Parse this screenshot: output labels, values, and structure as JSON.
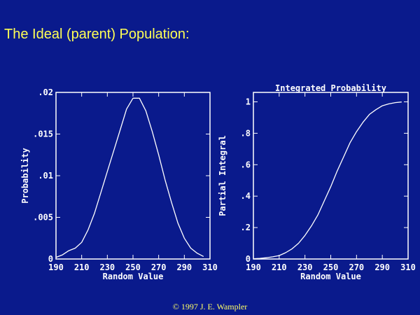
{
  "page": {
    "title": "The Ideal (parent) Population:",
    "copyright": "© 1997 J. E. Wampler"
  },
  "colors": {
    "background": "#0a1a8c",
    "title_text": "#ffff55",
    "axes": "#ffffff",
    "curve": "#ffffff"
  },
  "chart_data": [
    {
      "type": "line",
      "title": "",
      "xlabel": "Random Value",
      "ylabel": "Probability",
      "xlim": [
        190,
        310
      ],
      "ylim": [
        0,
        0.02
      ],
      "x_ticks": [
        190,
        210,
        230,
        250,
        270,
        290,
        310
      ],
      "x_tick_labels": [
        "190",
        "210",
        "230",
        "250",
        "270",
        "290",
        "310"
      ],
      "y_ticks": [
        0,
        0.005,
        0.01,
        0.015,
        0.02
      ],
      "y_tick_labels": [
        "0",
        ".005",
        ".01",
        ".015",
        ".02"
      ],
      "grid": false,
      "series": [
        {
          "x": [
            190,
            195,
            200,
            205,
            210,
            215,
            220,
            225,
            230,
            235,
            240,
            245,
            250,
            255,
            260,
            265,
            270,
            275,
            280,
            285,
            290,
            295,
            300,
            305
          ],
          "y": [
            0.0002,
            0.0005,
            0.001,
            0.0013,
            0.002,
            0.0035,
            0.0055,
            0.008,
            0.0105,
            0.013,
            0.0155,
            0.018,
            0.0193,
            0.0193,
            0.0178,
            0.0153,
            0.0125,
            0.0095,
            0.0068,
            0.0043,
            0.0025,
            0.0013,
            0.0007,
            0.0003
          ]
        }
      ]
    },
    {
      "type": "line",
      "title": "Integrated Probability",
      "xlabel": "Random Value",
      "ylabel": "Partial Integral",
      "xlim": [
        190,
        310
      ],
      "ylim": [
        0,
        1.06
      ],
      "x_ticks": [
        190,
        210,
        230,
        250,
        270,
        290,
        310
      ],
      "x_tick_labels": [
        "190",
        "210",
        "230",
        "250",
        "270",
        "290",
        "310"
      ],
      "y_ticks": [
        0,
        0.2,
        0.4,
        0.6,
        0.8,
        1
      ],
      "y_tick_labels": [
        "0",
        ".2",
        ".4",
        ".6",
        ".8",
        "1"
      ],
      "grid": false,
      "series": [
        {
          "x": [
            190,
            195,
            200,
            205,
            210,
            215,
            220,
            225,
            230,
            235,
            240,
            245,
            250,
            255,
            260,
            265,
            270,
            275,
            280,
            285,
            290,
            295,
            300,
            305
          ],
          "y": [
            0.002,
            0.004,
            0.008,
            0.014,
            0.022,
            0.04,
            0.065,
            0.1,
            0.15,
            0.21,
            0.28,
            0.37,
            0.46,
            0.56,
            0.65,
            0.74,
            0.81,
            0.87,
            0.92,
            0.95,
            0.975,
            0.987,
            0.995,
            0.999
          ]
        }
      ]
    }
  ]
}
